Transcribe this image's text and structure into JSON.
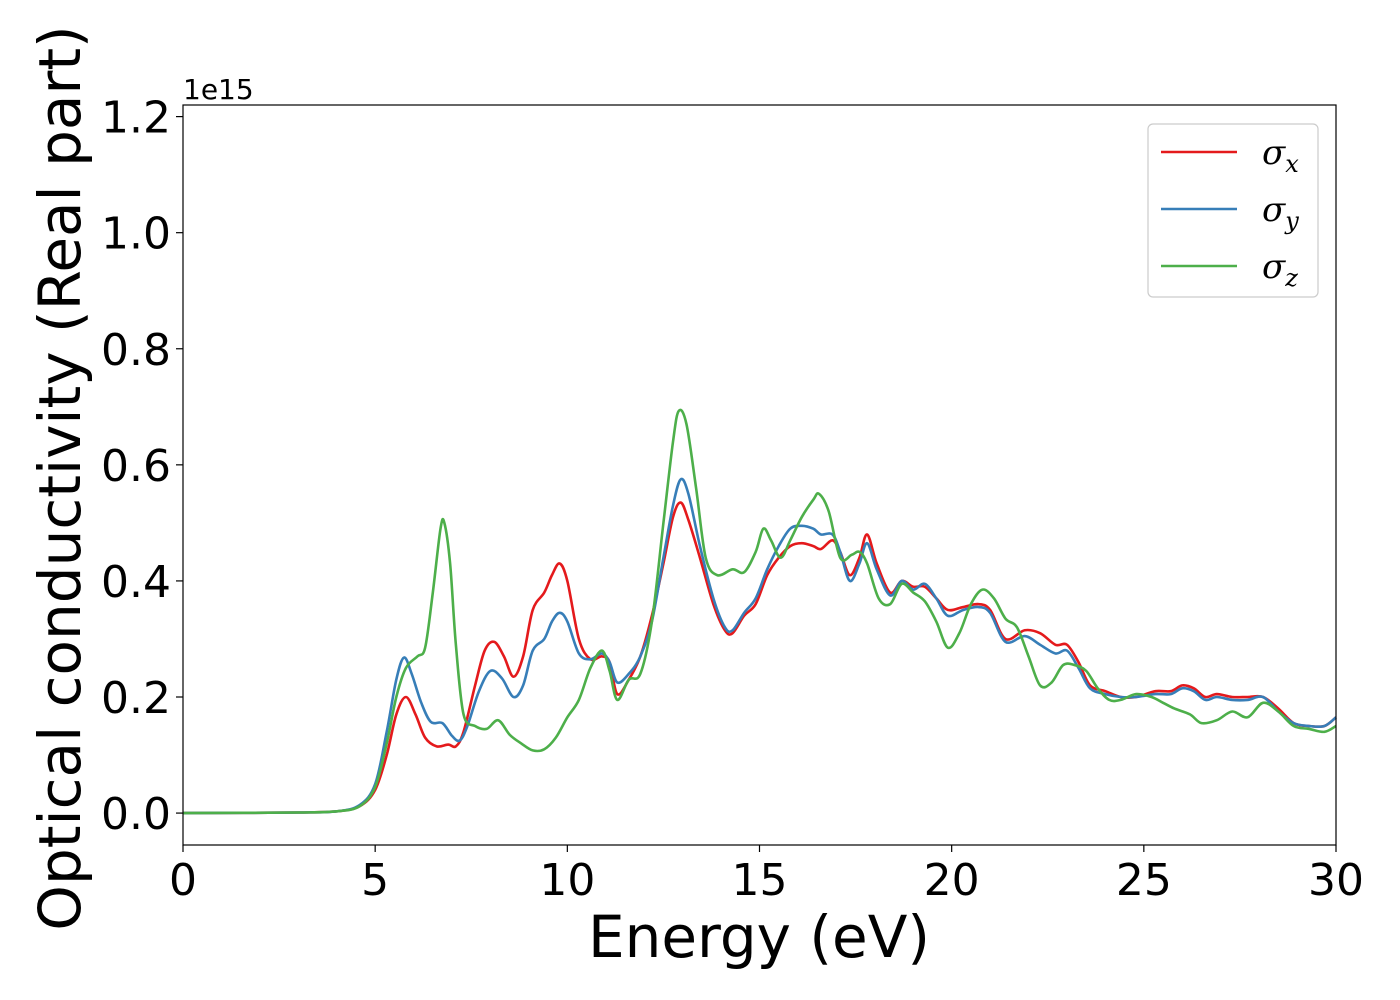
{
  "chart_data": {
    "type": "line",
    "xlabel": "Energy (eV)",
    "ylabel": "Optical conductivity (Real part)",
    "y_offset_label": "1e15",
    "xlim": [
      0,
      30
    ],
    "ylim": [
      -0.055,
      1.22
    ],
    "x_ticks": [
      0,
      5,
      10,
      15,
      20,
      25,
      30
    ],
    "x_tick_labels": [
      "0",
      "5",
      "10",
      "15",
      "20",
      "25",
      "30"
    ],
    "y_ticks": [
      0.0,
      0.2,
      0.4,
      0.6,
      0.8,
      1.0,
      1.2
    ],
    "y_tick_labels": [
      "0.0",
      "0.2",
      "0.4",
      "0.6",
      "0.8",
      "1.0",
      "1.2"
    ],
    "grid": false,
    "legend_position": "top-right",
    "series": [
      {
        "name": "σx",
        "symbol": "σ",
        "subscript": "x",
        "color": "#e41a1c",
        "points": [
          [
            0,
            0
          ],
          [
            3,
            0.001
          ],
          [
            4,
            0.003
          ],
          [
            4.6,
            0.012
          ],
          [
            5.0,
            0.04
          ],
          [
            5.3,
            0.1
          ],
          [
            5.55,
            0.17
          ],
          [
            5.8,
            0.2
          ],
          [
            6.05,
            0.17
          ],
          [
            6.3,
            0.13
          ],
          [
            6.6,
            0.115
          ],
          [
            6.9,
            0.118
          ],
          [
            7.1,
            0.115
          ],
          [
            7.3,
            0.14
          ],
          [
            7.6,
            0.22
          ],
          [
            7.85,
            0.28
          ],
          [
            8.1,
            0.295
          ],
          [
            8.35,
            0.27
          ],
          [
            8.6,
            0.235
          ],
          [
            8.85,
            0.27
          ],
          [
            9.1,
            0.35
          ],
          [
            9.4,
            0.38
          ],
          [
            9.6,
            0.41
          ],
          [
            9.8,
            0.43
          ],
          [
            10.0,
            0.4
          ],
          [
            10.3,
            0.3
          ],
          [
            10.6,
            0.265
          ],
          [
            10.9,
            0.27
          ],
          [
            11.1,
            0.26
          ],
          [
            11.3,
            0.205
          ],
          [
            11.6,
            0.23
          ],
          [
            11.9,
            0.27
          ],
          [
            12.2,
            0.34
          ],
          [
            12.5,
            0.43
          ],
          [
            12.75,
            0.51
          ],
          [
            12.95,
            0.535
          ],
          [
            13.15,
            0.505
          ],
          [
            13.45,
            0.44
          ],
          [
            13.8,
            0.36
          ],
          [
            14.1,
            0.315
          ],
          [
            14.3,
            0.31
          ],
          [
            14.6,
            0.34
          ],
          [
            14.9,
            0.36
          ],
          [
            15.2,
            0.41
          ],
          [
            15.5,
            0.44
          ],
          [
            15.8,
            0.46
          ],
          [
            16.1,
            0.465
          ],
          [
            16.4,
            0.46
          ],
          [
            16.6,
            0.455
          ],
          [
            16.9,
            0.47
          ],
          [
            17.1,
            0.45
          ],
          [
            17.35,
            0.41
          ],
          [
            17.6,
            0.44
          ],
          [
            17.8,
            0.48
          ],
          [
            18.05,
            0.43
          ],
          [
            18.4,
            0.38
          ],
          [
            18.7,
            0.4
          ],
          [
            19.0,
            0.39
          ],
          [
            19.3,
            0.39
          ],
          [
            19.6,
            0.37
          ],
          [
            19.9,
            0.35
          ],
          [
            20.3,
            0.355
          ],
          [
            20.7,
            0.36
          ],
          [
            21.0,
            0.35
          ],
          [
            21.4,
            0.3
          ],
          [
            21.9,
            0.315
          ],
          [
            22.3,
            0.31
          ],
          [
            22.7,
            0.29
          ],
          [
            23.0,
            0.29
          ],
          [
            23.3,
            0.26
          ],
          [
            23.6,
            0.22
          ],
          [
            24.0,
            0.21
          ],
          [
            24.4,
            0.2
          ],
          [
            24.8,
            0.2
          ],
          [
            25.3,
            0.21
          ],
          [
            25.7,
            0.21
          ],
          [
            26.0,
            0.22
          ],
          [
            26.3,
            0.215
          ],
          [
            26.6,
            0.2
          ],
          [
            26.9,
            0.205
          ],
          [
            27.3,
            0.2
          ],
          [
            27.7,
            0.2
          ],
          [
            28.1,
            0.2
          ],
          [
            28.5,
            0.18
          ],
          [
            28.9,
            0.155
          ],
          [
            29.3,
            0.15
          ],
          [
            29.7,
            0.15
          ],
          [
            30,
            0.165
          ]
        ]
      },
      {
        "name": "σy",
        "symbol": "σ",
        "subscript": "y",
        "color": "#377eb8",
        "points": [
          [
            0,
            0
          ],
          [
            3,
            0.001
          ],
          [
            4,
            0.003
          ],
          [
            4.6,
            0.014
          ],
          [
            5.0,
            0.05
          ],
          [
            5.3,
            0.14
          ],
          [
            5.55,
            0.23
          ],
          [
            5.75,
            0.268
          ],
          [
            5.95,
            0.24
          ],
          [
            6.2,
            0.19
          ],
          [
            6.45,
            0.157
          ],
          [
            6.75,
            0.155
          ],
          [
            7.0,
            0.133
          ],
          [
            7.2,
            0.125
          ],
          [
            7.4,
            0.15
          ],
          [
            7.7,
            0.21
          ],
          [
            8.0,
            0.245
          ],
          [
            8.3,
            0.232
          ],
          [
            8.6,
            0.2
          ],
          [
            8.85,
            0.22
          ],
          [
            9.1,
            0.28
          ],
          [
            9.4,
            0.3
          ],
          [
            9.6,
            0.33
          ],
          [
            9.8,
            0.345
          ],
          [
            10.0,
            0.33
          ],
          [
            10.3,
            0.275
          ],
          [
            10.6,
            0.265
          ],
          [
            10.9,
            0.275
          ],
          [
            11.1,
            0.26
          ],
          [
            11.3,
            0.225
          ],
          [
            11.6,
            0.24
          ],
          [
            11.9,
            0.27
          ],
          [
            12.2,
            0.33
          ],
          [
            12.5,
            0.44
          ],
          [
            12.75,
            0.53
          ],
          [
            12.95,
            0.575
          ],
          [
            13.15,
            0.55
          ],
          [
            13.45,
            0.46
          ],
          [
            13.8,
            0.37
          ],
          [
            14.1,
            0.32
          ],
          [
            14.3,
            0.315
          ],
          [
            14.6,
            0.345
          ],
          [
            14.9,
            0.37
          ],
          [
            15.2,
            0.42
          ],
          [
            15.5,
            0.46
          ],
          [
            15.8,
            0.49
          ],
          [
            16.1,
            0.495
          ],
          [
            16.4,
            0.49
          ],
          [
            16.6,
            0.48
          ],
          [
            16.9,
            0.48
          ],
          [
            17.1,
            0.45
          ],
          [
            17.35,
            0.4
          ],
          [
            17.6,
            0.43
          ],
          [
            17.8,
            0.465
          ],
          [
            18.05,
            0.42
          ],
          [
            18.4,
            0.375
          ],
          [
            18.7,
            0.4
          ],
          [
            19.0,
            0.385
          ],
          [
            19.3,
            0.395
          ],
          [
            19.6,
            0.37
          ],
          [
            19.9,
            0.34
          ],
          [
            20.3,
            0.35
          ],
          [
            20.7,
            0.355
          ],
          [
            21.0,
            0.345
          ],
          [
            21.4,
            0.295
          ],
          [
            21.9,
            0.305
          ],
          [
            22.3,
            0.29
          ],
          [
            22.7,
            0.275
          ],
          [
            23.0,
            0.28
          ],
          [
            23.3,
            0.25
          ],
          [
            23.6,
            0.215
          ],
          [
            24.0,
            0.205
          ],
          [
            24.4,
            0.2
          ],
          [
            24.8,
            0.2
          ],
          [
            25.3,
            0.205
          ],
          [
            25.7,
            0.205
          ],
          [
            26.0,
            0.215
          ],
          [
            26.3,
            0.21
          ],
          [
            26.6,
            0.195
          ],
          [
            26.9,
            0.2
          ],
          [
            27.3,
            0.195
          ],
          [
            27.7,
            0.195
          ],
          [
            28.1,
            0.2
          ],
          [
            28.5,
            0.175
          ],
          [
            28.9,
            0.155
          ],
          [
            29.3,
            0.15
          ],
          [
            29.7,
            0.15
          ],
          [
            30,
            0.165
          ]
        ]
      },
      {
        "name": "σz",
        "symbol": "σ",
        "subscript": "z",
        "color": "#4daf4a",
        "points": [
          [
            0,
            0
          ],
          [
            3,
            0.001
          ],
          [
            4,
            0.003
          ],
          [
            4.6,
            0.012
          ],
          [
            5.0,
            0.045
          ],
          [
            5.3,
            0.12
          ],
          [
            5.55,
            0.2
          ],
          [
            5.8,
            0.25
          ],
          [
            6.1,
            0.27
          ],
          [
            6.3,
            0.285
          ],
          [
            6.5,
            0.38
          ],
          [
            6.7,
            0.49
          ],
          [
            6.8,
            0.5
          ],
          [
            6.95,
            0.43
          ],
          [
            7.1,
            0.29
          ],
          [
            7.3,
            0.17
          ],
          [
            7.6,
            0.15
          ],
          [
            7.9,
            0.145
          ],
          [
            8.2,
            0.16
          ],
          [
            8.5,
            0.135
          ],
          [
            8.8,
            0.12
          ],
          [
            9.1,
            0.108
          ],
          [
            9.4,
            0.11
          ],
          [
            9.7,
            0.13
          ],
          [
            10.0,
            0.165
          ],
          [
            10.3,
            0.195
          ],
          [
            10.6,
            0.25
          ],
          [
            10.9,
            0.28
          ],
          [
            11.1,
            0.245
          ],
          [
            11.3,
            0.195
          ],
          [
            11.6,
            0.23
          ],
          [
            11.9,
            0.24
          ],
          [
            12.2,
            0.33
          ],
          [
            12.5,
            0.5
          ],
          [
            12.75,
            0.64
          ],
          [
            12.9,
            0.693
          ],
          [
            13.1,
            0.67
          ],
          [
            13.35,
            0.56
          ],
          [
            13.6,
            0.44
          ],
          [
            13.9,
            0.41
          ],
          [
            14.3,
            0.42
          ],
          [
            14.6,
            0.415
          ],
          [
            14.9,
            0.45
          ],
          [
            15.1,
            0.49
          ],
          [
            15.3,
            0.47
          ],
          [
            15.55,
            0.44
          ],
          [
            15.8,
            0.47
          ],
          [
            16.1,
            0.51
          ],
          [
            16.4,
            0.54
          ],
          [
            16.55,
            0.55
          ],
          [
            16.8,
            0.52
          ],
          [
            17.1,
            0.44
          ],
          [
            17.4,
            0.445
          ],
          [
            17.6,
            0.45
          ],
          [
            17.8,
            0.43
          ],
          [
            18.1,
            0.37
          ],
          [
            18.4,
            0.36
          ],
          [
            18.7,
            0.395
          ],
          [
            19.0,
            0.38
          ],
          [
            19.3,
            0.365
          ],
          [
            19.6,
            0.33
          ],
          [
            19.9,
            0.285
          ],
          [
            20.2,
            0.31
          ],
          [
            20.5,
            0.36
          ],
          [
            20.8,
            0.385
          ],
          [
            21.1,
            0.37
          ],
          [
            21.4,
            0.335
          ],
          [
            21.7,
            0.32
          ],
          [
            22.0,
            0.27
          ],
          [
            22.3,
            0.22
          ],
          [
            22.6,
            0.225
          ],
          [
            22.9,
            0.255
          ],
          [
            23.2,
            0.255
          ],
          [
            23.5,
            0.245
          ],
          [
            23.8,
            0.215
          ],
          [
            24.1,
            0.195
          ],
          [
            24.4,
            0.195
          ],
          [
            24.8,
            0.205
          ],
          [
            25.2,
            0.2
          ],
          [
            25.5,
            0.19
          ],
          [
            25.8,
            0.18
          ],
          [
            26.2,
            0.17
          ],
          [
            26.5,
            0.155
          ],
          [
            26.9,
            0.16
          ],
          [
            27.3,
            0.175
          ],
          [
            27.7,
            0.165
          ],
          [
            28.1,
            0.19
          ],
          [
            28.5,
            0.175
          ],
          [
            28.9,
            0.15
          ],
          [
            29.3,
            0.145
          ],
          [
            29.7,
            0.14
          ],
          [
            30,
            0.15
          ]
        ]
      }
    ]
  }
}
